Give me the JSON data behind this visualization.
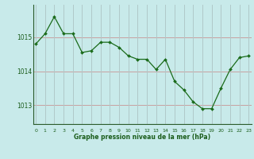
{
  "x": [
    0,
    1,
    2,
    3,
    4,
    5,
    6,
    7,
    8,
    9,
    10,
    11,
    12,
    13,
    14,
    15,
    16,
    17,
    18,
    19,
    20,
    21,
    22,
    23
  ],
  "y": [
    1014.8,
    1015.1,
    1015.6,
    1015.1,
    1015.1,
    1014.55,
    1014.6,
    1014.85,
    1014.85,
    1014.7,
    1014.45,
    1014.35,
    1014.35,
    1014.05,
    1014.35,
    1013.7,
    1013.45,
    1013.1,
    1012.9,
    1012.9,
    1013.5,
    1014.05,
    1014.4,
    1014.45
  ],
  "line_color": "#1a6b1a",
  "marker_color": "#1a6b1a",
  "bg_color": "#c8eaea",
  "hgrid_color": "#c8a0a0",
  "vgrid_color": "#b0c8c8",
  "xlabel": "Graphe pression niveau de la mer (hPa)",
  "xlabel_color": "#1a5c1a",
  "tick_label_color": "#1a5c1a",
  "ylabel_ticks": [
    1013,
    1014,
    1015
  ],
  "ylim": [
    1012.45,
    1015.95
  ],
  "xlim": [
    -0.3,
    23.3
  ],
  "xtick_labels": [
    "0",
    "1",
    "2",
    "3",
    "4",
    "5",
    "6",
    "7",
    "8",
    "9",
    "10",
    "11",
    "12",
    "13",
    "14",
    "15",
    "16",
    "17",
    "18",
    "19",
    "20",
    "21",
    "22",
    "23"
  ]
}
